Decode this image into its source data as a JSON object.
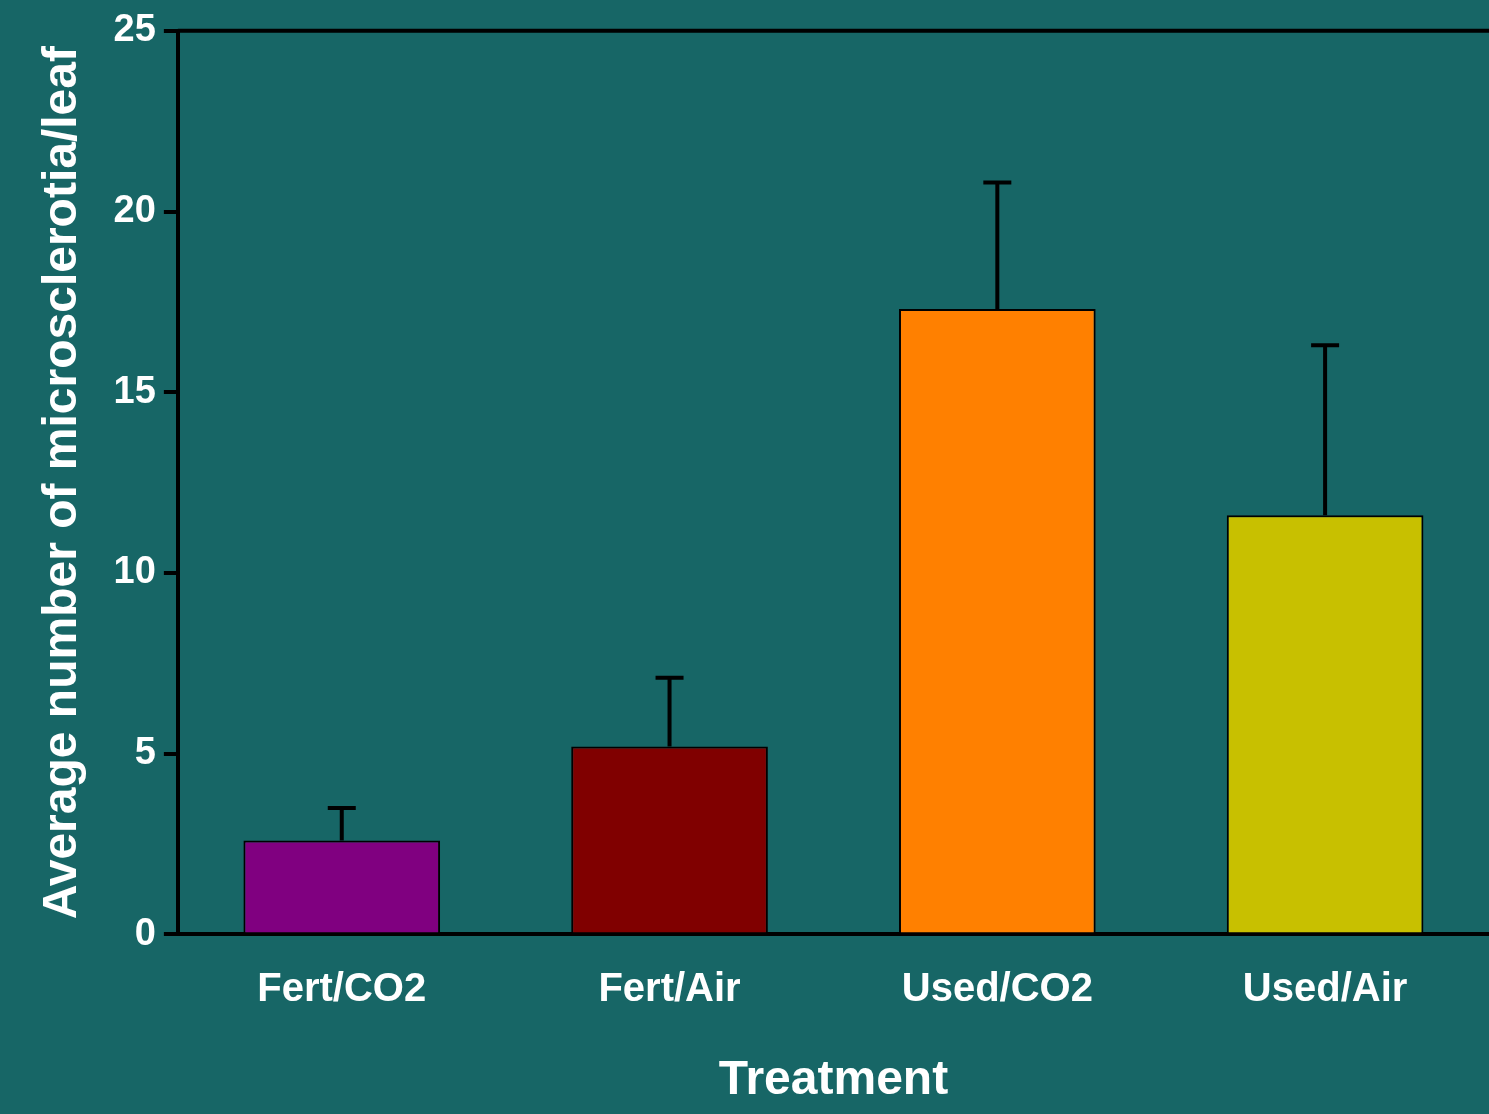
{
  "chart_data": {
    "type": "bar",
    "xlabel": "Treatment",
    "ylabel": "Average number of microsclerotia/leaf",
    "categories": [
      "Fert/CO2",
      "Fert/Air",
      "Used/CO2",
      "Used/Air"
    ],
    "values": [
      2.6,
      5.2,
      17.3,
      11.6
    ],
    "colors": [
      "#800080",
      "#800000",
      "#ff8000",
      "#c8c000"
    ],
    "errors": [
      [
        2.6,
        3.5
      ],
      [
        5.2,
        7.1
      ],
      [
        17.3,
        20.8
      ],
      [
        11.6,
        16.3
      ]
    ],
    "ylim": [
      0,
      25
    ],
    "yticks": [
      0,
      5,
      10,
      15,
      20,
      25
    ],
    "grid": false,
    "legend": false
  }
}
